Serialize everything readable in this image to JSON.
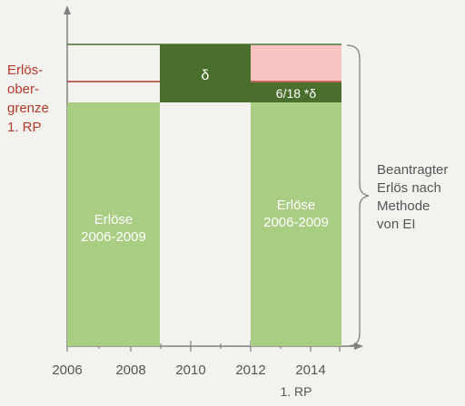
{
  "colors": {
    "green_light": "#a9cd83",
    "green_dark": "#4a6f2c",
    "pink": "#f7c2c0",
    "red_line": "#b23a2a",
    "axis": "#808080",
    "text_dark": "#555555",
    "text_white": "#ffffff"
  },
  "left_label": [
    "Erlös-",
    "ober-",
    "grenze",
    "1. RP"
  ],
  "right_label": [
    "Beantragter",
    "Erlös nach",
    "Methode",
    "von EI"
  ],
  "block_labels": {
    "delta": "δ",
    "fraction": "6/18 *δ",
    "erloese_left": [
      "Erlöse",
      "2006-2009"
    ],
    "erloese_right": [
      "Erlöse",
      "2006-2009"
    ]
  },
  "x_ticks": [
    "2006",
    "2008",
    "2010",
    "2012",
    "2014"
  ],
  "x_sublabel": "1. RP"
}
